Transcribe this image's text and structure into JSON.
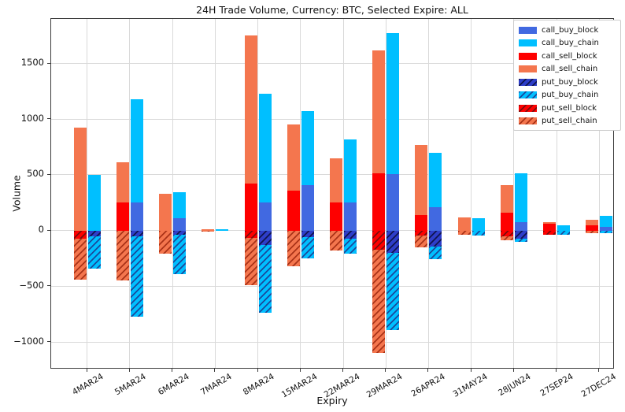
{
  "title": "24H Trade Volume, Currency: BTC, Selected Expire: ALL",
  "chart_data": {
    "type": "bar",
    "title": "24H Trade Volume, Currency: BTC, Selected Expire: ALL",
    "xlabel": "Expiry",
    "ylabel": "Volume",
    "ylim": [
      -1250,
      1900
    ],
    "grid": true,
    "legend_position": "upper right",
    "yticks": [
      {
        "value": 1500,
        "label": "1500"
      },
      {
        "value": 1000,
        "label": "1000"
      },
      {
        "value": 500,
        "label": "500"
      },
      {
        "value": 0,
        "label": "0"
      },
      {
        "value": -500,
        "label": "−500"
      },
      {
        "value": -1000,
        "label": "−1000"
      }
    ],
    "categories": [
      "4MAR24",
      "5MAR24",
      "6MAR24",
      "7MAR24",
      "8MAR24",
      "15MAR24",
      "22MAR24",
      "29MAR24",
      "26APR24",
      "31MAY24",
      "28JUN24",
      "27SEP24",
      "27DEC24"
    ],
    "series": [
      {
        "name": "call_buy_block",
        "bar": "buy",
        "hatched": false,
        "color": "#4169e1",
        "hatch_color": null,
        "values": [
          0,
          250,
          110,
          0,
          250,
          410,
          250,
          510,
          210,
          0,
          75,
          0,
          30
        ]
      },
      {
        "name": "call_buy_chain",
        "bar": "buy",
        "hatched": false,
        "color": "#00bfff",
        "hatch_color": null,
        "values": [
          500,
          930,
          235,
          15,
          975,
          660,
          570,
          1260,
          485,
          110,
          440,
          50,
          100
        ]
      },
      {
        "name": "call_sell_block",
        "bar": "sell",
        "hatched": false,
        "color": "#fe0000",
        "hatch_color": null,
        "values": [
          0,
          255,
          0,
          0,
          425,
          360,
          250,
          515,
          140,
          0,
          160,
          60,
          45
        ]
      },
      {
        "name": "call_sell_chain",
        "bar": "sell",
        "hatched": false,
        "color": "#f4764e",
        "hatch_color": null,
        "values": [
          925,
          355,
          330,
          10,
          1325,
          595,
          400,
          1100,
          625,
          115,
          245,
          15,
          55
        ]
      },
      {
        "name": "put_buy_block",
        "bar": "buy",
        "hatched": true,
        "color": "#2e3ec9",
        "hatch_color": "#10154f",
        "values": [
          -50,
          -50,
          -40,
          0,
          -130,
          -60,
          -70,
          -200,
          -145,
          0,
          -75,
          0,
          0
        ]
      },
      {
        "name": "put_buy_chain",
        "bar": "buy",
        "hatched": true,
        "color": "#00bfff",
        "hatch_color": "#1a4a9c",
        "values": [
          -295,
          -725,
          -350,
          0,
          -610,
          -190,
          -135,
          -695,
          -110,
          -45,
          -25,
          -35,
          -25
        ]
      },
      {
        "name": "put_sell_block",
        "bar": "sell",
        "hatched": true,
        "color": "#fe0000",
        "hatch_color": "#7a0d0d",
        "values": [
          -70,
          0,
          0,
          0,
          -65,
          0,
          0,
          -175,
          -45,
          0,
          -55,
          -40,
          0
        ]
      },
      {
        "name": "put_sell_chain",
        "bar": "sell",
        "hatched": true,
        "color": "#f4764e",
        "hatch_color": "#aa3318",
        "values": [
          -370,
          -445,
          -205,
          -10,
          -425,
          -320,
          -180,
          -925,
          -105,
          -40,
          -30,
          0,
          -20
        ]
      }
    ]
  }
}
